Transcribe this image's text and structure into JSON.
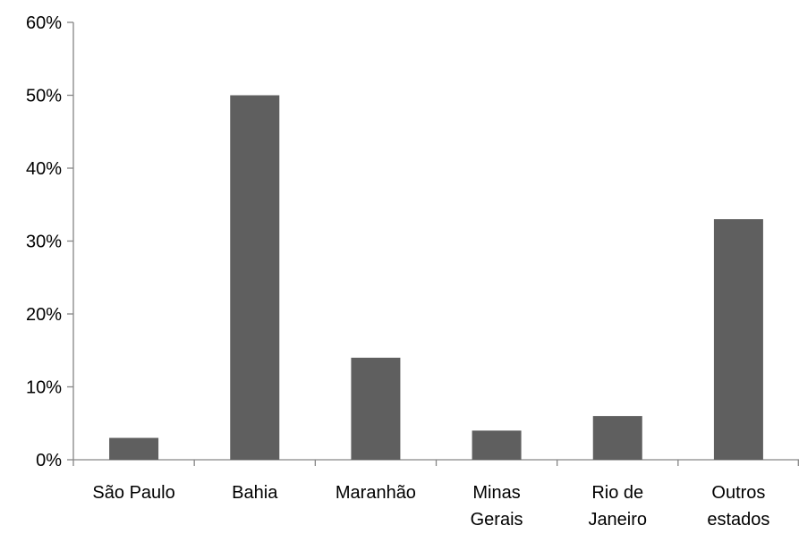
{
  "chart_data": {
    "type": "bar",
    "title": "",
    "xlabel": "",
    "ylabel": "",
    "categories": [
      [
        "São Paulo"
      ],
      [
        "Bahia"
      ],
      [
        "Maranhão"
      ],
      [
        "Minas",
        "Gerais"
      ],
      [
        "Rio de",
        "Janeiro"
      ],
      [
        "Outros",
        "estados"
      ]
    ],
    "values": [
      3,
      50,
      14,
      4,
      6,
      33
    ],
    "value_unit": "%",
    "ylim": [
      0,
      60
    ],
    "yticks": [
      0,
      10,
      20,
      30,
      40,
      50,
      60
    ],
    "ytick_labels": [
      "0%",
      "10%",
      "20%",
      "30%",
      "40%",
      "50%",
      "60%"
    ],
    "grid": false,
    "legend": "none",
    "bar_color": "#5f5f5f",
    "axis_color": "#868686"
  }
}
